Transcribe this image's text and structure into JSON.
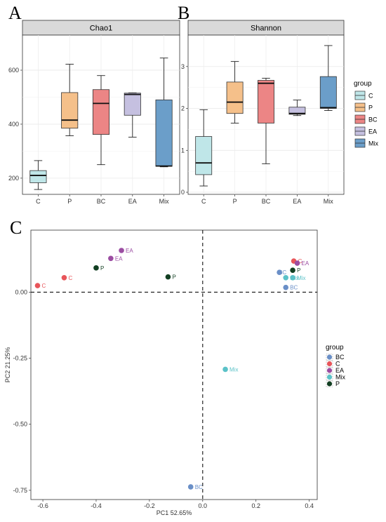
{
  "panels": {
    "a": "A",
    "b": "B",
    "c": "C"
  },
  "chart_data": [
    {
      "type": "box",
      "title": "Chao1",
      "categories": [
        "C",
        "P",
        "BC",
        "EA",
        "Mix"
      ],
      "ylim": [
        140,
        730
      ],
      "yticks": [
        200,
        400,
        600
      ],
      "boxes": [
        {
          "min": 158,
          "q1": 183,
          "median": 210,
          "q3": 228,
          "max": 265
        },
        {
          "min": 357,
          "q1": 385,
          "median": 415,
          "q3": 517,
          "max": 622
        },
        {
          "min": 250,
          "q1": 362,
          "median": 477,
          "q3": 528,
          "max": 580
        },
        {
          "min": 352,
          "q1": 433,
          "median": 510,
          "q3": 515,
          "max": 516
        },
        {
          "min": 242,
          "q1": 244,
          "median": 245,
          "q3": 490,
          "max": 645
        }
      ]
    },
    {
      "type": "box",
      "title": "Shannon",
      "categories": [
        "C",
        "P",
        "BC",
        "EA",
        "Mix"
      ],
      "ylim": [
        -0.05,
        3.75
      ],
      "yticks": [
        0,
        1,
        2,
        3
      ],
      "boxes": [
        {
          "min": 0.15,
          "q1": 0.42,
          "median": 0.7,
          "q3": 1.33,
          "max": 1.97
        },
        {
          "min": 1.65,
          "q1": 1.88,
          "median": 2.15,
          "q3": 2.63,
          "max": 3.12
        },
        {
          "min": 0.68,
          "q1": 1.65,
          "median": 2.6,
          "q3": 2.67,
          "max": 2.72
        },
        {
          "min": 1.83,
          "q1": 1.86,
          "median": 1.88,
          "q3": 2.03,
          "max": 2.2
        },
        {
          "min": 1.95,
          "q1": 2.0,
          "median": 2.02,
          "q3": 2.76,
          "max": 3.5
        }
      ]
    },
    {
      "type": "scatter",
      "xlabel": "PC1 52.65%",
      "ylabel": "PC2 21.25%",
      "xlim": [
        -0.645,
        0.43
      ],
      "ylim": [
        -0.785,
        0.235
      ],
      "xticks": [
        -0.6,
        -0.4,
        -0.2,
        0.0,
        0.2,
        0.4
      ],
      "xtick_labels": [
        "-0.6",
        "-0.4",
        "-0.2",
        "0.0",
        "0.2",
        "0.4"
      ],
      "yticks": [
        0.0,
        -0.25,
        -0.5,
        -0.75
      ],
      "ytick_labels": [
        "0.00",
        "-0.25",
        "-0.50",
        "-0.75"
      ],
      "points": [
        {
          "group": "C",
          "x": -0.62,
          "y": 0.025,
          "label": "C"
        },
        {
          "group": "C",
          "x": -0.52,
          "y": 0.055,
          "label": "C"
        },
        {
          "group": "P",
          "x": -0.4,
          "y": 0.092,
          "label": "P"
        },
        {
          "group": "EA",
          "x": -0.345,
          "y": 0.128,
          "label": "EA"
        },
        {
          "group": "EA",
          "x": -0.305,
          "y": 0.158,
          "label": "EA"
        },
        {
          "group": "P",
          "x": -0.13,
          "y": 0.058,
          "label": "P"
        },
        {
          "group": "C",
          "x": 0.342,
          "y": 0.118,
          "label": "C"
        },
        {
          "group": "EA",
          "x": 0.355,
          "y": 0.11,
          "label": "EA"
        },
        {
          "group": "P",
          "x": 0.338,
          "y": 0.083,
          "label": "P"
        },
        {
          "group": "BC",
          "x": 0.288,
          "y": 0.075,
          "label": "BC"
        },
        {
          "group": "Mix",
          "x": 0.312,
          "y": 0.055,
          "label": "Mix"
        },
        {
          "group": "Mix",
          "x": 0.338,
          "y": 0.055,
          "label": "Mix"
        },
        {
          "group": "BC",
          "x": 0.312,
          "y": 0.018,
          "label": "BC"
        },
        {
          "group": "Mix",
          "x": 0.085,
          "y": -0.292,
          "label": "Mix"
        },
        {
          "group": "BC",
          "x": -0.045,
          "y": -0.737,
          "label": "BC"
        }
      ]
    }
  ],
  "legend_ab": {
    "title": "group",
    "items": [
      {
        "label": "C",
        "color": "#bfe6e8"
      },
      {
        "label": "P",
        "color": "#f5c08a"
      },
      {
        "label": "BC",
        "color": "#ec8585"
      },
      {
        "label": "EA",
        "color": "#c5c0e0"
      },
      {
        "label": "Mix",
        "color": "#6b9ec9"
      }
    ]
  },
  "legend_c": {
    "title": "group",
    "items": [
      {
        "label": "BC",
        "color": "#6a8fc7"
      },
      {
        "label": "C",
        "color": "#e8555a"
      },
      {
        "label": "EA",
        "color": "#9b4da2"
      },
      {
        "label": "Mix",
        "color": "#5bc2c8"
      },
      {
        "label": "P",
        "color": "#123f22"
      }
    ]
  },
  "point_colors": {
    "BC": "#6a8fc7",
    "C": "#e8555a",
    "EA": "#9b4da2",
    "Mix": "#5bc2c8",
    "P": "#123f22"
  }
}
